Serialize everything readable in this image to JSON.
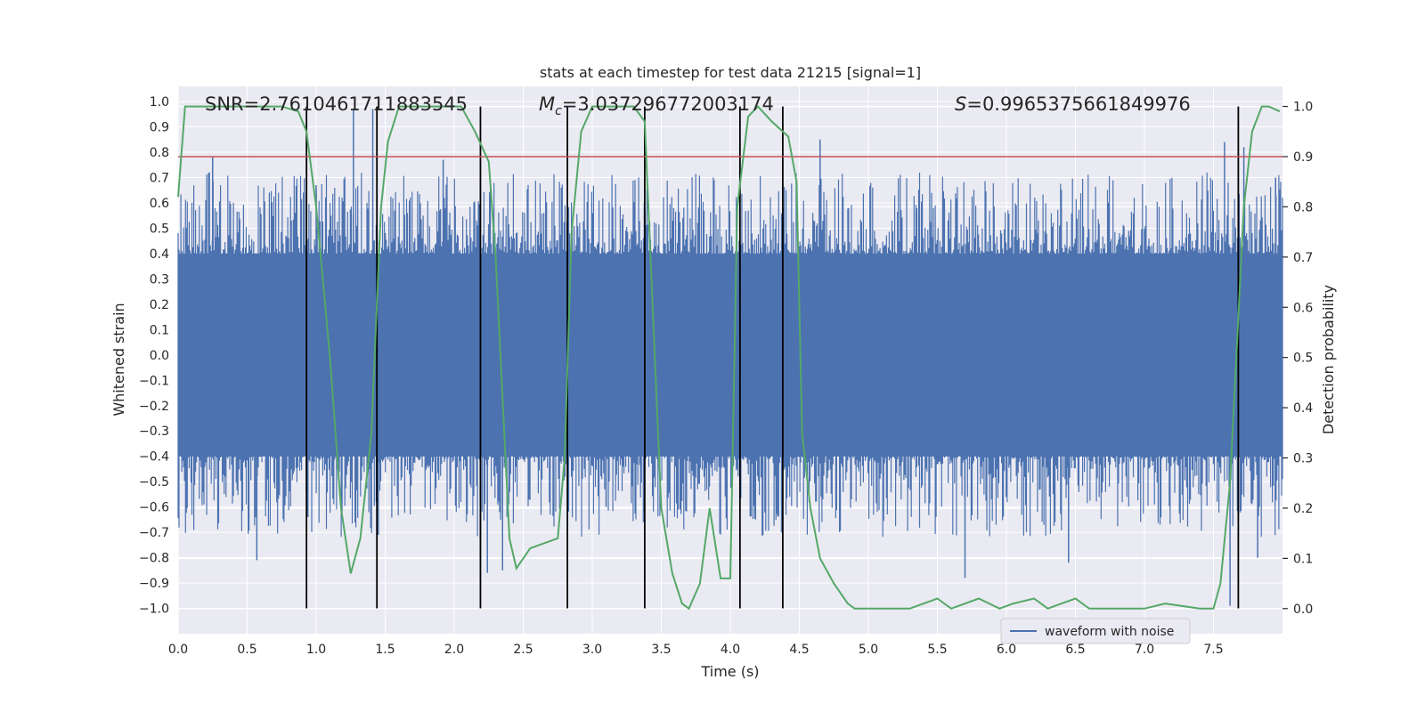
{
  "chart_data": {
    "type": "line",
    "title": "stats at each timestep for test data 21215 [signal=1]",
    "xlabel": "Time (s)",
    "ylabel": "Whitened strain",
    "y2label": "Detection probability",
    "xlim": [
      0.0,
      8.0
    ],
    "ylim": [
      -1.1,
      1.06
    ],
    "y2lim": [
      -0.05,
      1.04
    ],
    "x_ticks": [
      "0.0",
      "0.5",
      "1.0",
      "1.5",
      "2.0",
      "2.5",
      "3.0",
      "3.5",
      "4.0",
      "4.5",
      "5.0",
      "5.5",
      "6.0",
      "6.5",
      "7.0",
      "7.5"
    ],
    "y_ticks": [
      "1.0",
      "0.9",
      "0.8",
      "0.7",
      "0.6",
      "0.5",
      "0.4",
      "0.3",
      "0.2",
      "0.1",
      "0.0",
      "-0.1",
      "-0.2",
      "-0.3",
      "-0.4",
      "-0.5",
      "-0.6",
      "-0.7",
      "-0.8",
      "-0.9",
      "-1.0"
    ],
    "y2_ticks": [
      "1.0",
      "0.9",
      "0.8",
      "0.7",
      "0.6",
      "0.5",
      "0.4",
      "0.3",
      "0.2",
      "0.1",
      "0.0"
    ],
    "annotations": {
      "snr": "SNR=2.7610461711883545",
      "mc_symbol": "M",
      "mc_sub": "c",
      "mc_value": "=3.037296772003174",
      "s_symbol": "S",
      "s_value": "=0.9965375661849976"
    },
    "legend": {
      "label": "waveform with noise",
      "position": "lower-right"
    },
    "threshold_prob": 0.9,
    "vertical_lines_s": [
      0.93,
      1.44,
      2.19,
      2.82,
      3.38,
      4.07,
      4.38,
      7.68
    ],
    "waveform": {
      "name": "waveform with noise",
      "core_amplitude": 0.4,
      "samples": 1200,
      "spikes": [
        {
          "x": 0.25,
          "y": 0.78
        },
        {
          "x": 1.0,
          "y": 0.67
        },
        {
          "x": 1.27,
          "y": 0.97
        },
        {
          "x": 1.41,
          "y": 0.97
        },
        {
          "x": 1.45,
          "y": -0.71
        },
        {
          "x": 0.94,
          "y": -0.64
        },
        {
          "x": 1.92,
          "y": 0.77
        },
        {
          "x": 2.19,
          "y": -0.74
        },
        {
          "x": 2.24,
          "y": -0.86
        },
        {
          "x": 2.35,
          "y": -0.85
        },
        {
          "x": 4.65,
          "y": 0.85
        },
        {
          "x": 5.7,
          "y": -0.88
        },
        {
          "x": 7.58,
          "y": 0.84
        },
        {
          "x": 7.62,
          "y": -0.99
        },
        {
          "x": 7.72,
          "y": 0.82
        },
        {
          "x": 7.82,
          "y": -0.8
        },
        {
          "x": 7.95,
          "y": 0.7
        },
        {
          "x": 0.57,
          "y": -0.81
        },
        {
          "x": 6.45,
          "y": -0.82
        },
        {
          "x": 3.1,
          "y": -0.6
        }
      ]
    },
    "detection_probability": {
      "x": [
        0.0,
        0.05,
        0.1,
        0.2,
        0.5,
        0.75,
        0.87,
        0.93,
        1.0,
        1.1,
        1.18,
        1.25,
        1.32,
        1.4,
        1.47,
        1.52,
        1.6,
        1.75,
        2.05,
        2.15,
        2.25,
        2.3,
        2.4,
        2.45,
        2.55,
        2.65,
        2.75,
        2.8,
        2.85,
        2.92,
        3.0,
        3.3,
        3.38,
        3.5,
        3.58,
        3.65,
        3.7,
        3.78,
        3.85,
        3.93,
        4.0,
        4.05,
        4.13,
        4.2,
        4.3,
        4.42,
        4.48,
        4.52,
        4.58,
        4.65,
        4.75,
        4.85,
        4.9,
        5.0,
        5.3,
        5.5,
        5.6,
        5.8,
        5.95,
        6.05,
        6.2,
        6.3,
        6.4,
        6.5,
        6.6,
        6.8,
        7.0,
        7.15,
        7.4,
        7.5,
        7.55,
        7.62,
        7.72,
        7.78,
        7.85,
        7.9,
        7.98
      ],
      "y": [
        0.82,
        1.0,
        1.0,
        1.0,
        1.0,
        1.0,
        0.99,
        0.95,
        0.8,
        0.5,
        0.2,
        0.07,
        0.14,
        0.35,
        0.8,
        0.93,
        1.0,
        1.0,
        1.0,
        0.95,
        0.89,
        0.7,
        0.14,
        0.08,
        0.12,
        0.13,
        0.14,
        0.3,
        0.75,
        0.95,
        1.0,
        1.0,
        0.97,
        0.2,
        0.07,
        0.01,
        0.0,
        0.05,
        0.2,
        0.06,
        0.06,
        0.8,
        0.98,
        1.0,
        0.97,
        0.94,
        0.85,
        0.35,
        0.2,
        0.1,
        0.05,
        0.01,
        0.0,
        0.0,
        0.0,
        0.02,
        0.0,
        0.02,
        0.0,
        0.01,
        0.02,
        0.0,
        0.01,
        0.02,
        0.0,
        0.0,
        0.0,
        0.01,
        0.0,
        0.0,
        0.05,
        0.25,
        0.8,
        0.95,
        1.0,
        1.0,
        0.99
      ]
    },
    "colors": {
      "background": "#eaeaf2",
      "grid": "#ffffff",
      "waveform": "#4c72b0",
      "probability": "#55a868",
      "threshold": "#c44e52",
      "vline": "#000000"
    }
  }
}
